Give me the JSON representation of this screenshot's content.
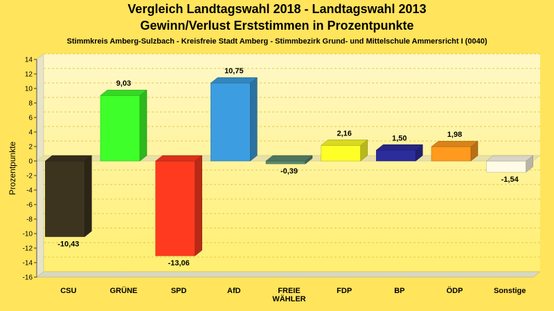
{
  "chart_data": {
    "type": "bar",
    "title": "Vergleich Landtagswahl 2018 - Landtagswahl 2013",
    "subtitle": "Gewinn/Verlust Erststimmen in Prozentpunkte",
    "subtitle2": "Stimmkreis Amberg-Sulzbach - Kreisfreie Stadt Amberg - Stimmbezirk Grund- und Mittelschule Ammersricht I (0040)",
    "ylabel": "Prozentpunkte",
    "ylim": [
      -16,
      14
    ],
    "yticks": [
      "14",
      "12",
      "10",
      "8",
      "6",
      "4",
      "2",
      "0",
      "-2",
      "-4",
      "-6",
      "-8",
      "-10",
      "-12",
      "-14",
      "-16"
    ],
    "grid": true,
    "categories": [
      "CSU",
      "GRÜNE",
      "SPD",
      "AfD",
      "FREIE WÄHLER",
      "FDP",
      "BP",
      "ÖDP",
      "Sonstige"
    ],
    "category_lines": [
      [
        "CSU"
      ],
      [
        "GRÜNE"
      ],
      [
        "SPD"
      ],
      [
        "AfD"
      ],
      [
        "FREIE",
        "WÄHLER"
      ],
      [
        "FDP"
      ],
      [
        "BP"
      ],
      [
        "ÖDP"
      ],
      [
        "Sonstige"
      ]
    ],
    "values": [
      -10.43,
      9.03,
      -13.06,
      10.75,
      -0.39,
      2.16,
      1.5,
      1.98,
      -1.54
    ],
    "value_labels": [
      "-10,43",
      "9,03",
      "-13,06",
      "10,75",
      "-0,39",
      "2,16",
      "1,50",
      "1,98",
      "-1,54"
    ],
    "colors": [
      "#3d3420",
      "#3fff2a",
      "#ff3a1f",
      "#3c9ee0",
      "#5a8a6e",
      "#ffff28",
      "#2c2c9c",
      "#ff9a1e",
      "#fffbe6"
    ]
  }
}
